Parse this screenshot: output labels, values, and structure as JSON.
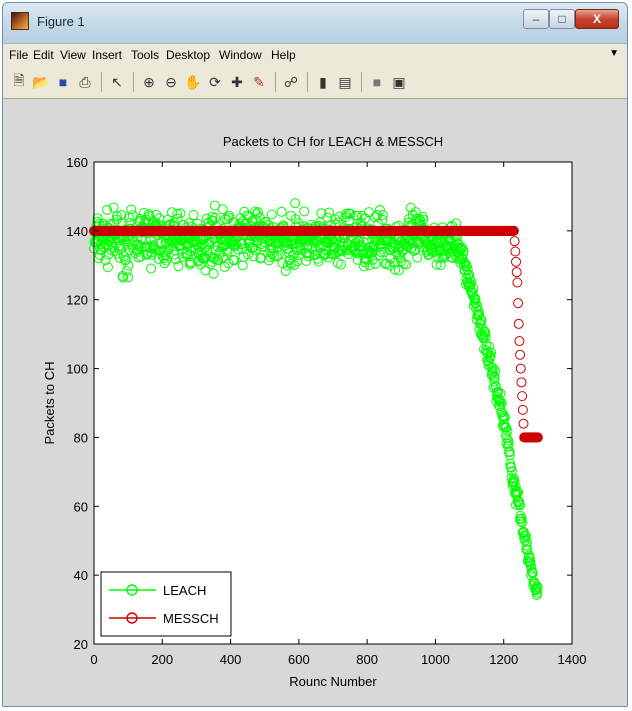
{
  "window": {
    "title": "Figure 1",
    "buttons": {
      "minimize": "–",
      "maximize": "□",
      "close": "X"
    }
  },
  "menu": {
    "items": [
      "File",
      "Edit",
      "View",
      "Insert",
      "Tools",
      "Desktop",
      "Window",
      "Help"
    ]
  },
  "toolbar": {
    "icons": [
      "new-figure-icon",
      "open-file-icon",
      "save-icon",
      "print-icon",
      "pointer-icon",
      "zoom-in-icon",
      "zoom-out-icon",
      "pan-icon",
      "rotate-3d-icon",
      "data-cursor-icon",
      "brush-icon",
      "link-plot-icon",
      "colorbar-icon",
      "legend-icon",
      "hide-plot-tools-icon",
      "show-plot-tools-icon"
    ]
  },
  "colors": {
    "leach": "#00ff00",
    "messch": "#cc0000",
    "plot_bg": "#ffffff",
    "figure_bg": "#d8d8d8"
  },
  "chart_data": {
    "type": "scatter",
    "title": "Packets to CH for LEACH & MESSCH",
    "xlabel": "Rounc Number",
    "ylabel": "Packets to CH",
    "xlim": [
      0,
      1400
    ],
    "ylim": [
      20,
      160
    ],
    "xticks": [
      0,
      200,
      400,
      600,
      800,
      1000,
      1200,
      1400
    ],
    "yticks": [
      20,
      40,
      60,
      80,
      100,
      120,
      140,
      160
    ],
    "grid": false,
    "legend_position": "bottom-left",
    "marker": "circle",
    "series": [
      {
        "name": "LEACH",
        "color": "#00ff00",
        "x": [
          0,
          50,
          100,
          150,
          200,
          250,
          300,
          350,
          400,
          450,
          500,
          550,
          600,
          650,
          700,
          750,
          800,
          850,
          900,
          950,
          1000,
          1050,
          1070,
          1080,
          1100,
          1120,
          1140,
          1160,
          1180,
          1200,
          1210,
          1220,
          1230,
          1240,
          1250,
          1260,
          1270,
          1280,
          1290,
          1300
        ],
        "y": [
          137,
          138,
          136,
          139,
          137,
          138,
          136,
          138,
          137,
          139,
          138,
          137,
          138,
          136,
          137,
          138,
          137,
          138,
          136,
          138,
          137,
          136,
          135,
          132,
          125,
          118,
          110,
          102,
          94,
          85,
          80,
          73,
          67,
          62,
          57,
          52,
          47,
          42,
          38,
          35
        ],
        "spread": [
          8,
          8,
          9,
          8,
          9,
          8,
          8,
          9,
          8,
          8,
          9,
          8,
          9,
          8,
          8,
          9,
          8,
          8,
          9,
          8,
          7,
          6,
          5,
          4,
          4,
          4,
          4,
          4,
          4,
          4,
          4,
          4,
          4,
          4,
          4,
          3,
          3,
          3,
          2,
          2
        ]
      },
      {
        "name": "MESSCH",
        "color": "#cc0000",
        "x": [
          0,
          100,
          200,
          300,
          400,
          500,
          600,
          700,
          800,
          900,
          1000,
          1100,
          1200,
          1230,
          1240,
          1245,
          1250,
          1255,
          1260,
          1270,
          1280,
          1290,
          1300
        ],
        "y": [
          140,
          140,
          140,
          140,
          140,
          140,
          140,
          140,
          140,
          140,
          140,
          140,
          140,
          140,
          125,
          110,
          100,
          90,
          80,
          80,
          80,
          80,
          80
        ]
      }
    ]
  }
}
